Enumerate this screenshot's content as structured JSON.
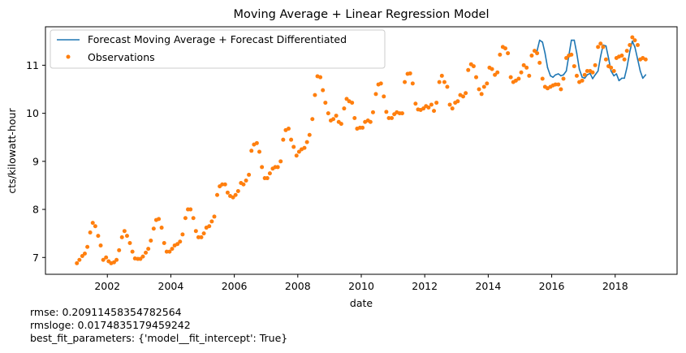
{
  "chart_data": {
    "type": "line",
    "title": "Moving Average + Linear Regression Model",
    "xlabel": "date",
    "ylabel": "cts/kilowatt-hour",
    "xlim": [
      2000.05,
      2019.95
    ],
    "ylim": [
      6.65,
      11.8
    ],
    "x_ticks": [
      2002,
      2004,
      2006,
      2008,
      2010,
      2012,
      2014,
      2016,
      2018
    ],
    "x_tick_labels": [
      "2002",
      "2004",
      "2006",
      "2008",
      "2010",
      "2012",
      "2014",
      "2016",
      "2018"
    ],
    "y_ticks": [
      7,
      8,
      9,
      10,
      11
    ],
    "y_tick_labels": [
      "7",
      "8",
      "9",
      "10",
      "11"
    ],
    "grid": false,
    "legend_position": "top-left",
    "series": [
      {
        "name": "Forecast Moving Average + Forecast Differentiated",
        "style": "line",
        "color": "#1f77b4",
        "x": [
          2015.54,
          2015.62,
          2015.71,
          2015.79,
          2015.87,
          2015.96,
          2016.04,
          2016.12,
          2016.21,
          2016.29,
          2016.37,
          2016.46,
          2016.54,
          2016.62,
          2016.71,
          2016.79,
          2016.87,
          2016.96,
          2017.04,
          2017.12,
          2017.21,
          2017.29,
          2017.37,
          2017.46,
          2017.54,
          2017.62,
          2017.71,
          2017.79,
          2017.87,
          2017.96,
          2018.04,
          2018.12,
          2018.21,
          2018.29,
          2018.37,
          2018.46,
          2018.54,
          2018.62,
          2018.71,
          2018.79,
          2018.87,
          2018.96
        ],
        "y": [
          11.3,
          11.52,
          11.48,
          11.25,
          10.95,
          10.78,
          10.75,
          10.8,
          10.82,
          10.78,
          10.8,
          10.88,
          11.2,
          11.52,
          11.52,
          11.25,
          10.92,
          10.75,
          10.73,
          10.8,
          10.83,
          10.72,
          10.8,
          10.88,
          11.18,
          11.42,
          11.4,
          11.15,
          10.88,
          10.78,
          10.82,
          10.68,
          10.73,
          10.73,
          10.95,
          11.28,
          11.5,
          11.38,
          11.12,
          10.88,
          10.73,
          10.8
        ]
      },
      {
        "name": "Observations",
        "style": "markers",
        "color": "#ff7f0e",
        "x": [
          2001.04,
          2001.12,
          2001.21,
          2001.29,
          2001.37,
          2001.46,
          2001.54,
          2001.62,
          2001.71,
          2001.79,
          2001.87,
          2001.96,
          2002.04,
          2002.12,
          2002.21,
          2002.29,
          2002.37,
          2002.46,
          2002.54,
          2002.62,
          2002.71,
          2002.79,
          2002.87,
          2002.96,
          2003.04,
          2003.12,
          2003.21,
          2003.29,
          2003.37,
          2003.46,
          2003.54,
          2003.62,
          2003.71,
          2003.79,
          2003.87,
          2003.96,
          2004.04,
          2004.12,
          2004.21,
          2004.29,
          2004.37,
          2004.46,
          2004.54,
          2004.62,
          2004.71,
          2004.79,
          2004.87,
          2004.96,
          2005.04,
          2005.12,
          2005.21,
          2005.29,
          2005.37,
          2005.46,
          2005.54,
          2005.62,
          2005.71,
          2005.79,
          2005.87,
          2005.96,
          2006.04,
          2006.12,
          2006.21,
          2006.29,
          2006.37,
          2006.46,
          2006.54,
          2006.62,
          2006.71,
          2006.79,
          2006.87,
          2006.96,
          2007.04,
          2007.12,
          2007.21,
          2007.29,
          2007.37,
          2007.46,
          2007.54,
          2007.62,
          2007.71,
          2007.79,
          2007.87,
          2007.96,
          2008.04,
          2008.12,
          2008.21,
          2008.29,
          2008.37,
          2008.46,
          2008.54,
          2008.62,
          2008.71,
          2008.79,
          2008.87,
          2008.96,
          2009.04,
          2009.12,
          2009.21,
          2009.29,
          2009.37,
          2009.46,
          2009.54,
          2009.62,
          2009.71,
          2009.79,
          2009.87,
          2009.96,
          2010.04,
          2010.12,
          2010.21,
          2010.29,
          2010.37,
          2010.46,
          2010.54,
          2010.62,
          2010.71,
          2010.79,
          2010.87,
          2010.96,
          2011.04,
          2011.12,
          2011.21,
          2011.29,
          2011.37,
          2011.46,
          2011.54,
          2011.62,
          2011.71,
          2011.79,
          2011.87,
          2011.96,
          2012.04,
          2012.12,
          2012.21,
          2012.29,
          2012.37,
          2012.46,
          2012.54,
          2012.62,
          2012.71,
          2012.79,
          2012.87,
          2012.96,
          2013.04,
          2013.12,
          2013.21,
          2013.29,
          2013.37,
          2013.46,
          2013.54,
          2013.62,
          2013.71,
          2013.79,
          2013.87,
          2013.96,
          2014.04,
          2014.12,
          2014.21,
          2014.29,
          2014.37,
          2014.46,
          2014.54,
          2014.62,
          2014.71,
          2014.79,
          2014.87,
          2014.96,
          2015.04,
          2015.12,
          2015.21,
          2015.29,
          2015.37,
          2015.46,
          2015.54,
          2015.62,
          2015.71,
          2015.79,
          2015.87,
          2015.96,
          2016.04,
          2016.12,
          2016.21,
          2016.29,
          2016.37,
          2016.46,
          2016.54,
          2016.62,
          2016.71,
          2016.79,
          2016.87,
          2016.96,
          2017.04,
          2017.12,
          2017.21,
          2017.29,
          2017.37,
          2017.46,
          2017.54,
          2017.62,
          2017.71,
          2017.79,
          2017.87,
          2017.96,
          2018.04,
          2018.12,
          2018.21,
          2018.29,
          2018.37,
          2018.46,
          2018.54,
          2018.62,
          2018.71,
          2018.79,
          2018.87,
          2018.96
        ],
        "y": [
          6.88,
          6.95,
          7.03,
          7.08,
          7.22,
          7.52,
          7.72,
          7.65,
          7.45,
          7.25,
          6.95,
          7.0,
          6.92,
          6.88,
          6.9,
          6.95,
          7.15,
          7.42,
          7.55,
          7.45,
          7.3,
          7.12,
          6.98,
          6.97,
          6.97,
          7.02,
          7.1,
          7.18,
          7.35,
          7.6,
          7.78,
          7.8,
          7.62,
          7.3,
          7.12,
          7.12,
          7.18,
          7.25,
          7.28,
          7.33,
          7.48,
          7.82,
          8.0,
          8.0,
          7.82,
          7.55,
          7.42,
          7.42,
          7.5,
          7.62,
          7.65,
          7.75,
          7.85,
          8.3,
          8.48,
          8.52,
          8.52,
          8.35,
          8.28,
          8.25,
          8.3,
          8.38,
          8.55,
          8.52,
          8.6,
          8.72,
          9.22,
          9.35,
          9.38,
          9.2,
          8.88,
          8.65,
          8.65,
          8.75,
          8.85,
          8.88,
          8.88,
          9.0,
          9.45,
          9.65,
          9.68,
          9.45,
          9.3,
          9.12,
          9.2,
          9.25,
          9.28,
          9.4,
          9.55,
          9.88,
          10.38,
          10.77,
          10.75,
          10.48,
          10.22,
          10.0,
          9.85,
          9.88,
          9.95,
          9.82,
          9.78,
          10.1,
          10.3,
          10.25,
          10.22,
          9.9,
          9.68,
          9.7,
          9.7,
          9.82,
          9.85,
          9.82,
          10.02,
          10.4,
          10.6,
          10.62,
          10.35,
          10.03,
          9.9,
          9.9,
          9.98,
          10.02,
          10.0,
          10.0,
          10.65,
          10.82,
          10.83,
          10.62,
          10.2,
          10.08,
          10.07,
          10.1,
          10.15,
          10.12,
          10.18,
          10.05,
          10.22,
          10.65,
          10.78,
          10.65,
          10.55,
          10.18,
          10.1,
          10.22,
          10.25,
          10.38,
          10.35,
          10.42,
          10.9,
          11.02,
          10.98,
          10.75,
          10.5,
          10.4,
          10.55,
          10.62,
          10.95,
          10.92,
          10.8,
          10.85,
          11.22,
          11.38,
          11.35,
          11.25,
          10.75,
          10.65,
          10.68,
          10.72,
          10.85,
          11.0,
          10.95,
          10.78,
          11.2,
          11.3,
          11.25,
          11.05,
          10.72,
          10.55,
          10.52,
          10.55,
          10.58,
          10.6,
          10.6,
          10.5,
          10.72,
          11.15,
          11.2,
          11.22,
          10.98,
          10.78,
          10.65,
          10.68,
          10.8,
          10.88,
          10.88,
          10.85,
          11.0,
          11.38,
          11.45,
          11.38,
          11.12,
          10.98,
          10.95,
          10.88,
          11.15,
          11.18,
          11.2,
          11.12,
          11.3,
          11.42,
          11.58,
          11.52,
          11.42,
          11.12,
          11.15,
          11.12
        ]
      }
    ]
  },
  "footer": {
    "rmse": "rmse: 0.20911458354782564",
    "rmsloge": "rmsloge: 0.0174835179459242",
    "best_fit": "best_fit_parameters: {'model__fit_intercept': True}"
  }
}
